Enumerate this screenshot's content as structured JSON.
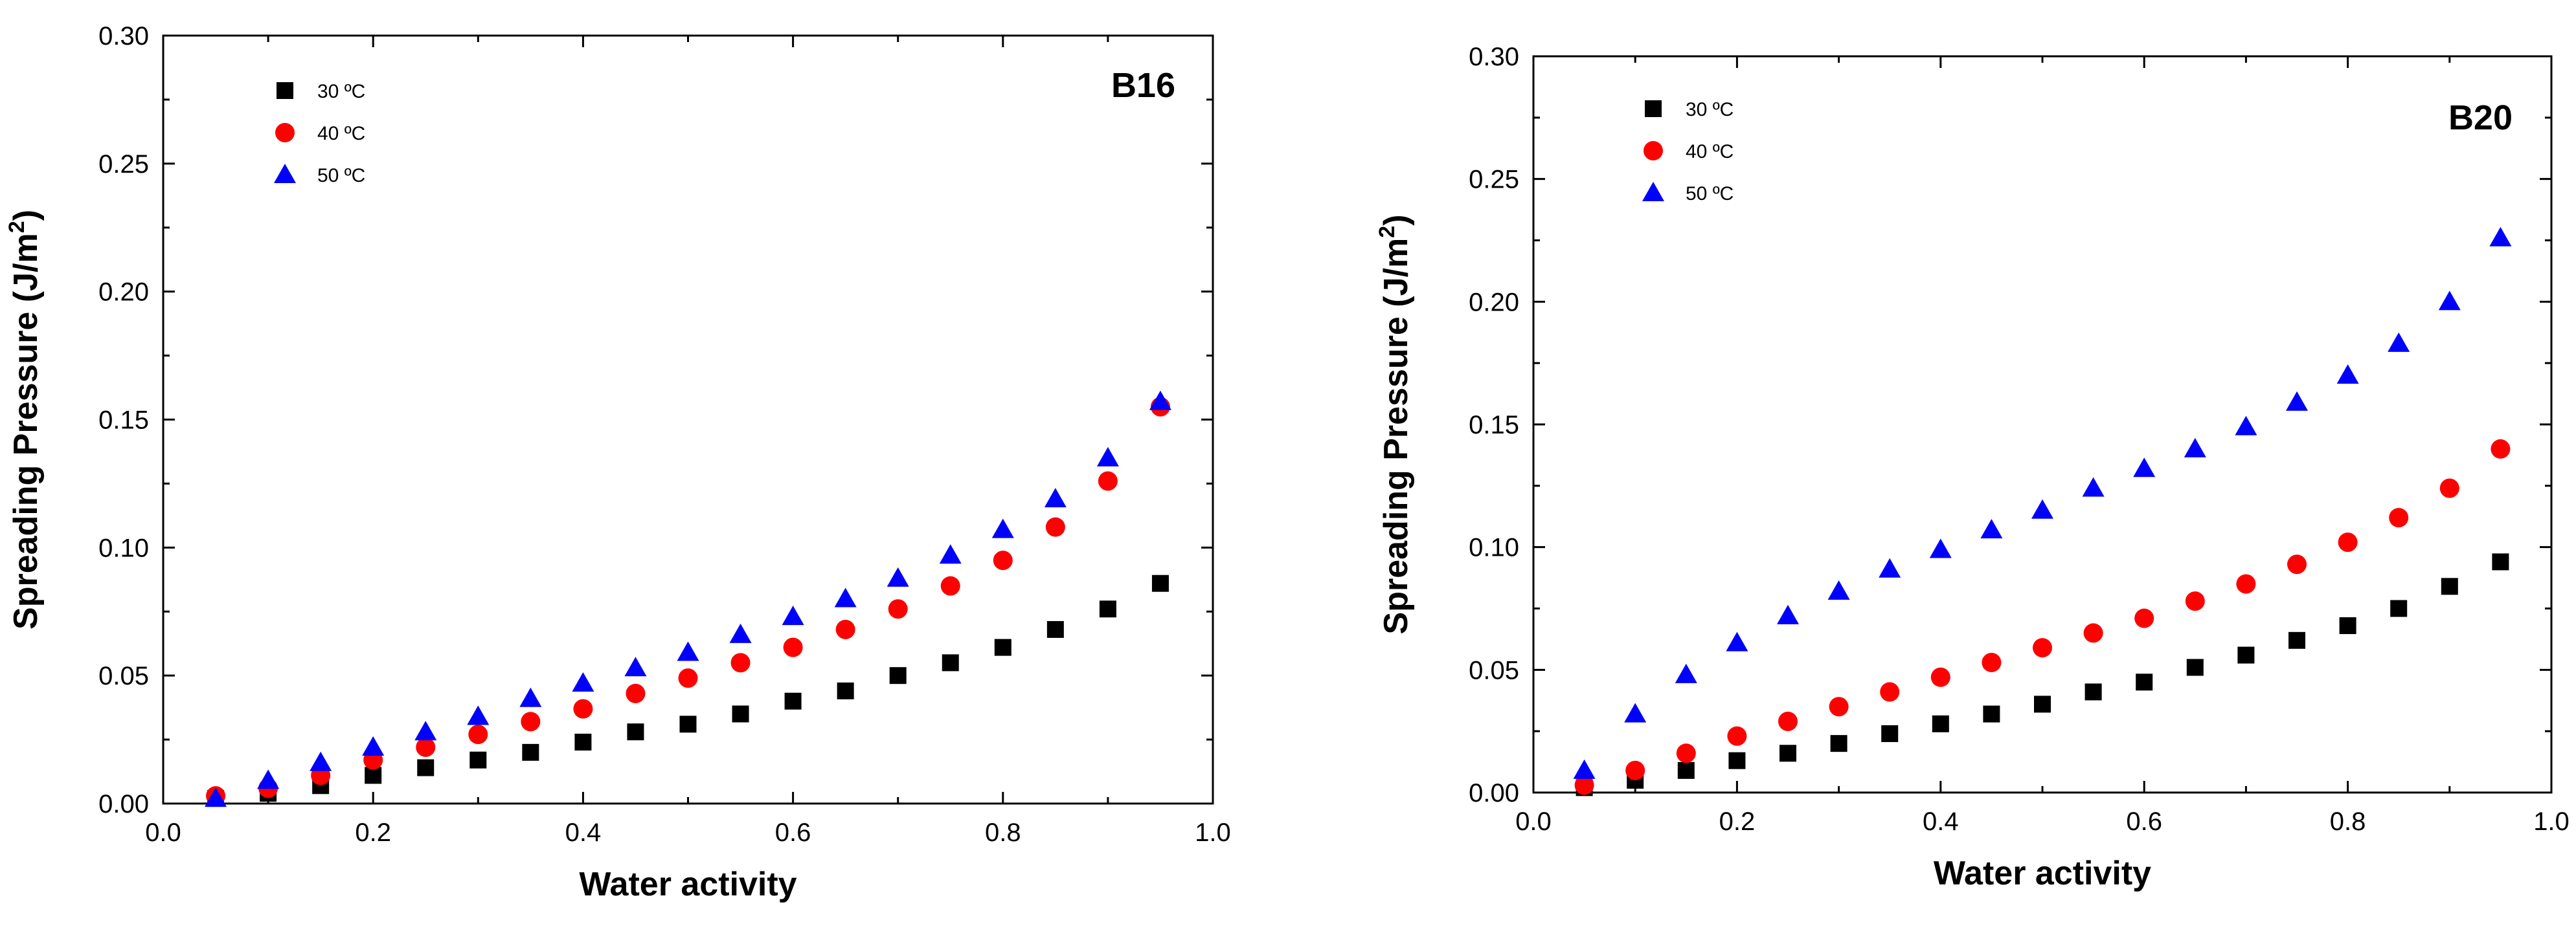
{
  "chart_data": [
    {
      "type": "scatter",
      "title": "",
      "panel_label": "B16",
      "xlabel": "Water activity",
      "ylabel": "Spreading Pressure (J/m²)",
      "ylabel_main": "Spreading Pressure (J/m",
      "ylabel_sup": "2",
      "ylabel_close": ")",
      "xlim": [
        0.0,
        1.0
      ],
      "ylim": [
        0.0,
        0.3
      ],
      "x_ticks": [
        "0.0",
        "0.2",
        "0.4",
        "0.6",
        "0.8",
        "1.0"
      ],
      "y_ticks": [
        "0.00",
        "0.05",
        "0.10",
        "0.15",
        "0.20",
        "0.25",
        "0.30"
      ],
      "legend_position": "top-left",
      "x": [
        0.05,
        0.1,
        0.15,
        0.2,
        0.25,
        0.3,
        0.35,
        0.4,
        0.45,
        0.5,
        0.55,
        0.6,
        0.65,
        0.7,
        0.75,
        0.8,
        0.85,
        0.9,
        0.95
      ],
      "series": [
        {
          "name": "30 ºC",
          "marker": "square",
          "color": "#000000",
          "values": [
            0.002,
            0.004,
            0.007,
            0.011,
            0.014,
            0.017,
            0.02,
            0.024,
            0.028,
            0.031,
            0.035,
            0.04,
            0.044,
            0.05,
            0.055,
            0.061,
            0.068,
            0.076,
            0.086
          ]
        },
        {
          "name": "40 ºC",
          "marker": "circle",
          "color": "#ff0000",
          "values": [
            0.003,
            0.006,
            0.011,
            0.017,
            0.022,
            0.027,
            0.032,
            0.037,
            0.043,
            0.049,
            0.055,
            0.061,
            0.068,
            0.076,
            0.085,
            0.095,
            0.108,
            0.126,
            0.155
          ]
        },
        {
          "name": "50 ºC",
          "marker": "triangle",
          "color": "#0000ff",
          "values": [
            0.002,
            0.009,
            0.016,
            0.022,
            0.028,
            0.034,
            0.041,
            0.047,
            0.053,
            0.059,
            0.066,
            0.073,
            0.08,
            0.088,
            0.097,
            0.107,
            0.119,
            0.135,
            0.157
          ]
        }
      ]
    },
    {
      "type": "scatter",
      "title": "",
      "panel_label": "B20",
      "xlabel": "Water activity",
      "ylabel": "Spreading Pressure (J/m²)",
      "ylabel_main": "Spreading Pressure (J/m",
      "ylabel_sup": "2",
      "ylabel_close": ")",
      "xlim": [
        0.0,
        1.0
      ],
      "ylim": [
        0.0,
        0.3
      ],
      "x_ticks": [
        "0.0",
        "0.2",
        "0.4",
        "0.6",
        "0.8",
        "1.0"
      ],
      "y_ticks": [
        "0.00",
        "0.05",
        "0.10",
        "0.15",
        "0.20",
        "0.25",
        "0.30"
      ],
      "legend_position": "top-left",
      "x": [
        0.05,
        0.1,
        0.15,
        0.2,
        0.25,
        0.3,
        0.35,
        0.4,
        0.45,
        0.5,
        0.55,
        0.6,
        0.65,
        0.7,
        0.75,
        0.8,
        0.85,
        0.9,
        0.95
      ],
      "series": [
        {
          "name": "30 ºC",
          "marker": "square",
          "color": "#000000",
          "values": [
            0.002,
            0.005,
            0.009,
            0.013,
            0.016,
            0.02,
            0.024,
            0.028,
            0.032,
            0.036,
            0.041,
            0.045,
            0.051,
            0.056,
            0.062,
            0.068,
            0.075,
            0.084,
            0.094
          ]
        },
        {
          "name": "40 ºC",
          "marker": "circle",
          "color": "#ff0000",
          "values": [
            0.003,
            0.009,
            0.016,
            0.023,
            0.029,
            0.035,
            0.041,
            0.047,
            0.053,
            0.059,
            0.065,
            0.071,
            0.078,
            0.085,
            0.093,
            0.102,
            0.112,
            0.124,
            0.14
          ]
        },
        {
          "name": "50 ºC",
          "marker": "triangle",
          "color": "#0000ff",
          "values": [
            0.009,
            0.032,
            0.048,
            0.061,
            0.072,
            0.082,
            0.091,
            0.099,
            0.107,
            0.115,
            0.124,
            0.132,
            0.14,
            0.149,
            0.159,
            0.17,
            0.183,
            0.2,
            0.226
          ]
        }
      ]
    }
  ]
}
